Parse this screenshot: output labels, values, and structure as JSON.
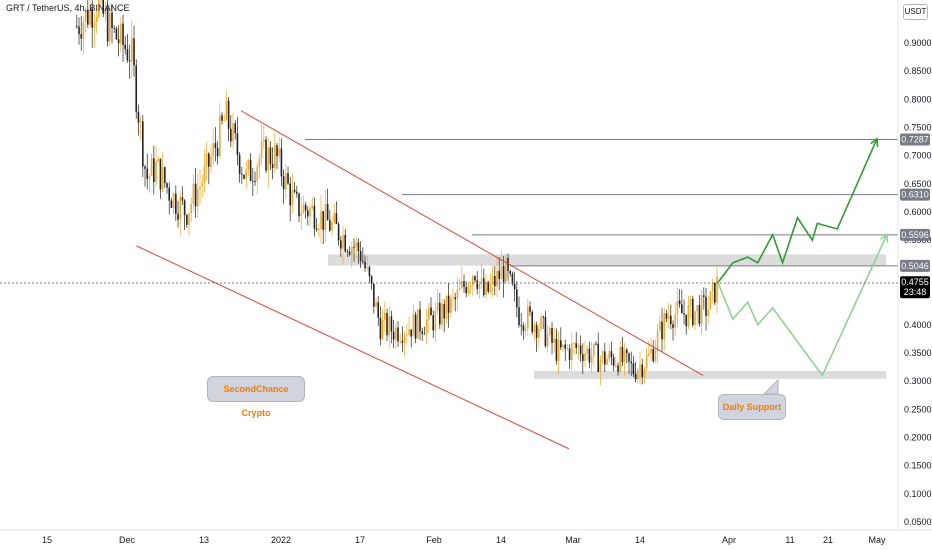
{
  "header": {
    "symbol_title": "GRT / TetherUS, 4h, BINANCE",
    "currency": "USDT"
  },
  "price_axis": {
    "ticks": [
      "0.9000",
      "0.8500",
      "0.8000",
      "0.7500",
      "0.7000",
      "0.6500",
      "0.6000",
      "0.5500",
      "0.4000",
      "0.3500",
      "0.3000",
      "0.2500",
      "0.2000",
      "0.1500",
      "0.1000",
      "0.0500"
    ]
  },
  "time_axis": {
    "labels": [
      "15",
      "Dec",
      "13",
      "2022",
      "17",
      "Feb",
      "14",
      "Mar",
      "14",
      "Apr",
      "11",
      "21",
      "May"
    ]
  },
  "price_labels": [
    {
      "text": "0.7287",
      "value": 0.7287,
      "color": "#787b86"
    },
    {
      "text": "0.6310",
      "value": 0.631,
      "color": "#787b86"
    },
    {
      "text": "0.5596",
      "value": 0.5596,
      "color": "#787b86"
    },
    {
      "text": "0.5046",
      "value": 0.5046,
      "color": "#787b86"
    }
  ],
  "current_price": {
    "text": "0.4755",
    "countdown": "23:48",
    "value": 0.4755,
    "color": "#000000"
  },
  "annotations": {
    "brand_label": "SecondChance Crypto",
    "support_label": "Daily Support"
  },
  "colors": {
    "candle_up": "#f5a623",
    "candle_down": "#222222",
    "trendline": "#d84a35",
    "projection_dark": "#2e9c2e",
    "projection_light": "#8fd18f",
    "zone": "#dcdcdc"
  },
  "chart_data": {
    "type": "line",
    "title": "GRT / TetherUS, 4h, BINANCE",
    "xlabel": "",
    "ylabel": "",
    "ylim": [
      0.0375,
      1.01
    ],
    "x_ticks": [
      "15",
      "Dec",
      "13",
      "2022",
      "17",
      "Feb",
      "14",
      "Mar",
      "14",
      "Apr",
      "11",
      "21",
      "May"
    ],
    "series": [
      {
        "name": "",
        "x": [
          "2021-11-21",
          "2021-11-25",
          "2021-11-28",
          "2021-12-02",
          "2021-12-05",
          "2021-12-07",
          "2021-12-10",
          "2021-12-13",
          "2021-12-17",
          "2021-12-21",
          "2021-12-25",
          "2021-12-28",
          "2021-12-31",
          "2022-01-04",
          "2022-01-08",
          "2022-01-12",
          "2022-01-17",
          "2022-01-19",
          "2022-01-21",
          "2022-01-24",
          "2022-01-28",
          "2022-02-01",
          "2022-02-05",
          "2022-02-09",
          "2022-02-11",
          "2022-02-15",
          "2022-02-18",
          "2022-02-22",
          "2022-02-26",
          "2022-03-02",
          "2022-03-06",
          "2022-03-10",
          "2022-03-13",
          "2022-03-16",
          "2022-03-20",
          "2022-03-24",
          "2022-03-28",
          "2022-03-30"
        ],
        "y": [
          0.93,
          0.97,
          0.92,
          0.88,
          0.66,
          0.68,
          0.63,
          0.6,
          0.67,
          0.77,
          0.66,
          0.7,
          0.7,
          0.61,
          0.6,
          0.57,
          0.53,
          0.47,
          0.4,
          0.39,
          0.4,
          0.41,
          0.44,
          0.5,
          0.45,
          0.5,
          0.42,
          0.4,
          0.35,
          0.36,
          0.34,
          0.34,
          0.32,
          0.34,
          0.42,
          0.42,
          0.43,
          0.4755
        ]
      }
    ],
    "horizontal_levels": [
      0.7287,
      0.631,
      0.5596,
      0.5046
    ],
    "zones": [
      {
        "label": "",
        "from": 0.505,
        "to": 0.525
      },
      {
        "label": "Daily Support",
        "from": 0.304,
        "to": 0.318
      }
    ],
    "trendlines": [
      {
        "from": [
          "2021-12-24",
          0.78
        ],
        "to": [
          "2022-03-27",
          0.31
        ]
      },
      {
        "from": [
          "2021-12-03",
          0.54
        ],
        "to": [
          "2022-02-28",
          0.18
        ]
      }
    ],
    "projections": [
      {
        "style": "dark",
        "points": [
          [
            "2022-03-30",
            0.475
          ],
          [
            "2022-04-02",
            0.51
          ],
          [
            "2022-04-05",
            0.52
          ],
          [
            "2022-04-07",
            0.51
          ],
          [
            "2022-04-10",
            0.56
          ],
          [
            "2022-04-12",
            0.51
          ],
          [
            "2022-04-15",
            0.59
          ],
          [
            "2022-04-18",
            0.55
          ],
          [
            "2022-04-19",
            0.58
          ],
          [
            "2022-04-23",
            0.57
          ],
          [
            "2022-05-01",
            0.73
          ]
        ]
      },
      {
        "style": "light",
        "points": [
          [
            "2022-03-30",
            0.475
          ],
          [
            "2022-04-02",
            0.41
          ],
          [
            "2022-04-05",
            0.44
          ],
          [
            "2022-04-07",
            0.4
          ],
          [
            "2022-04-10",
            0.43
          ],
          [
            "2022-04-20",
            0.31
          ],
          [
            "2022-05-03",
            0.56
          ]
        ]
      }
    ]
  }
}
